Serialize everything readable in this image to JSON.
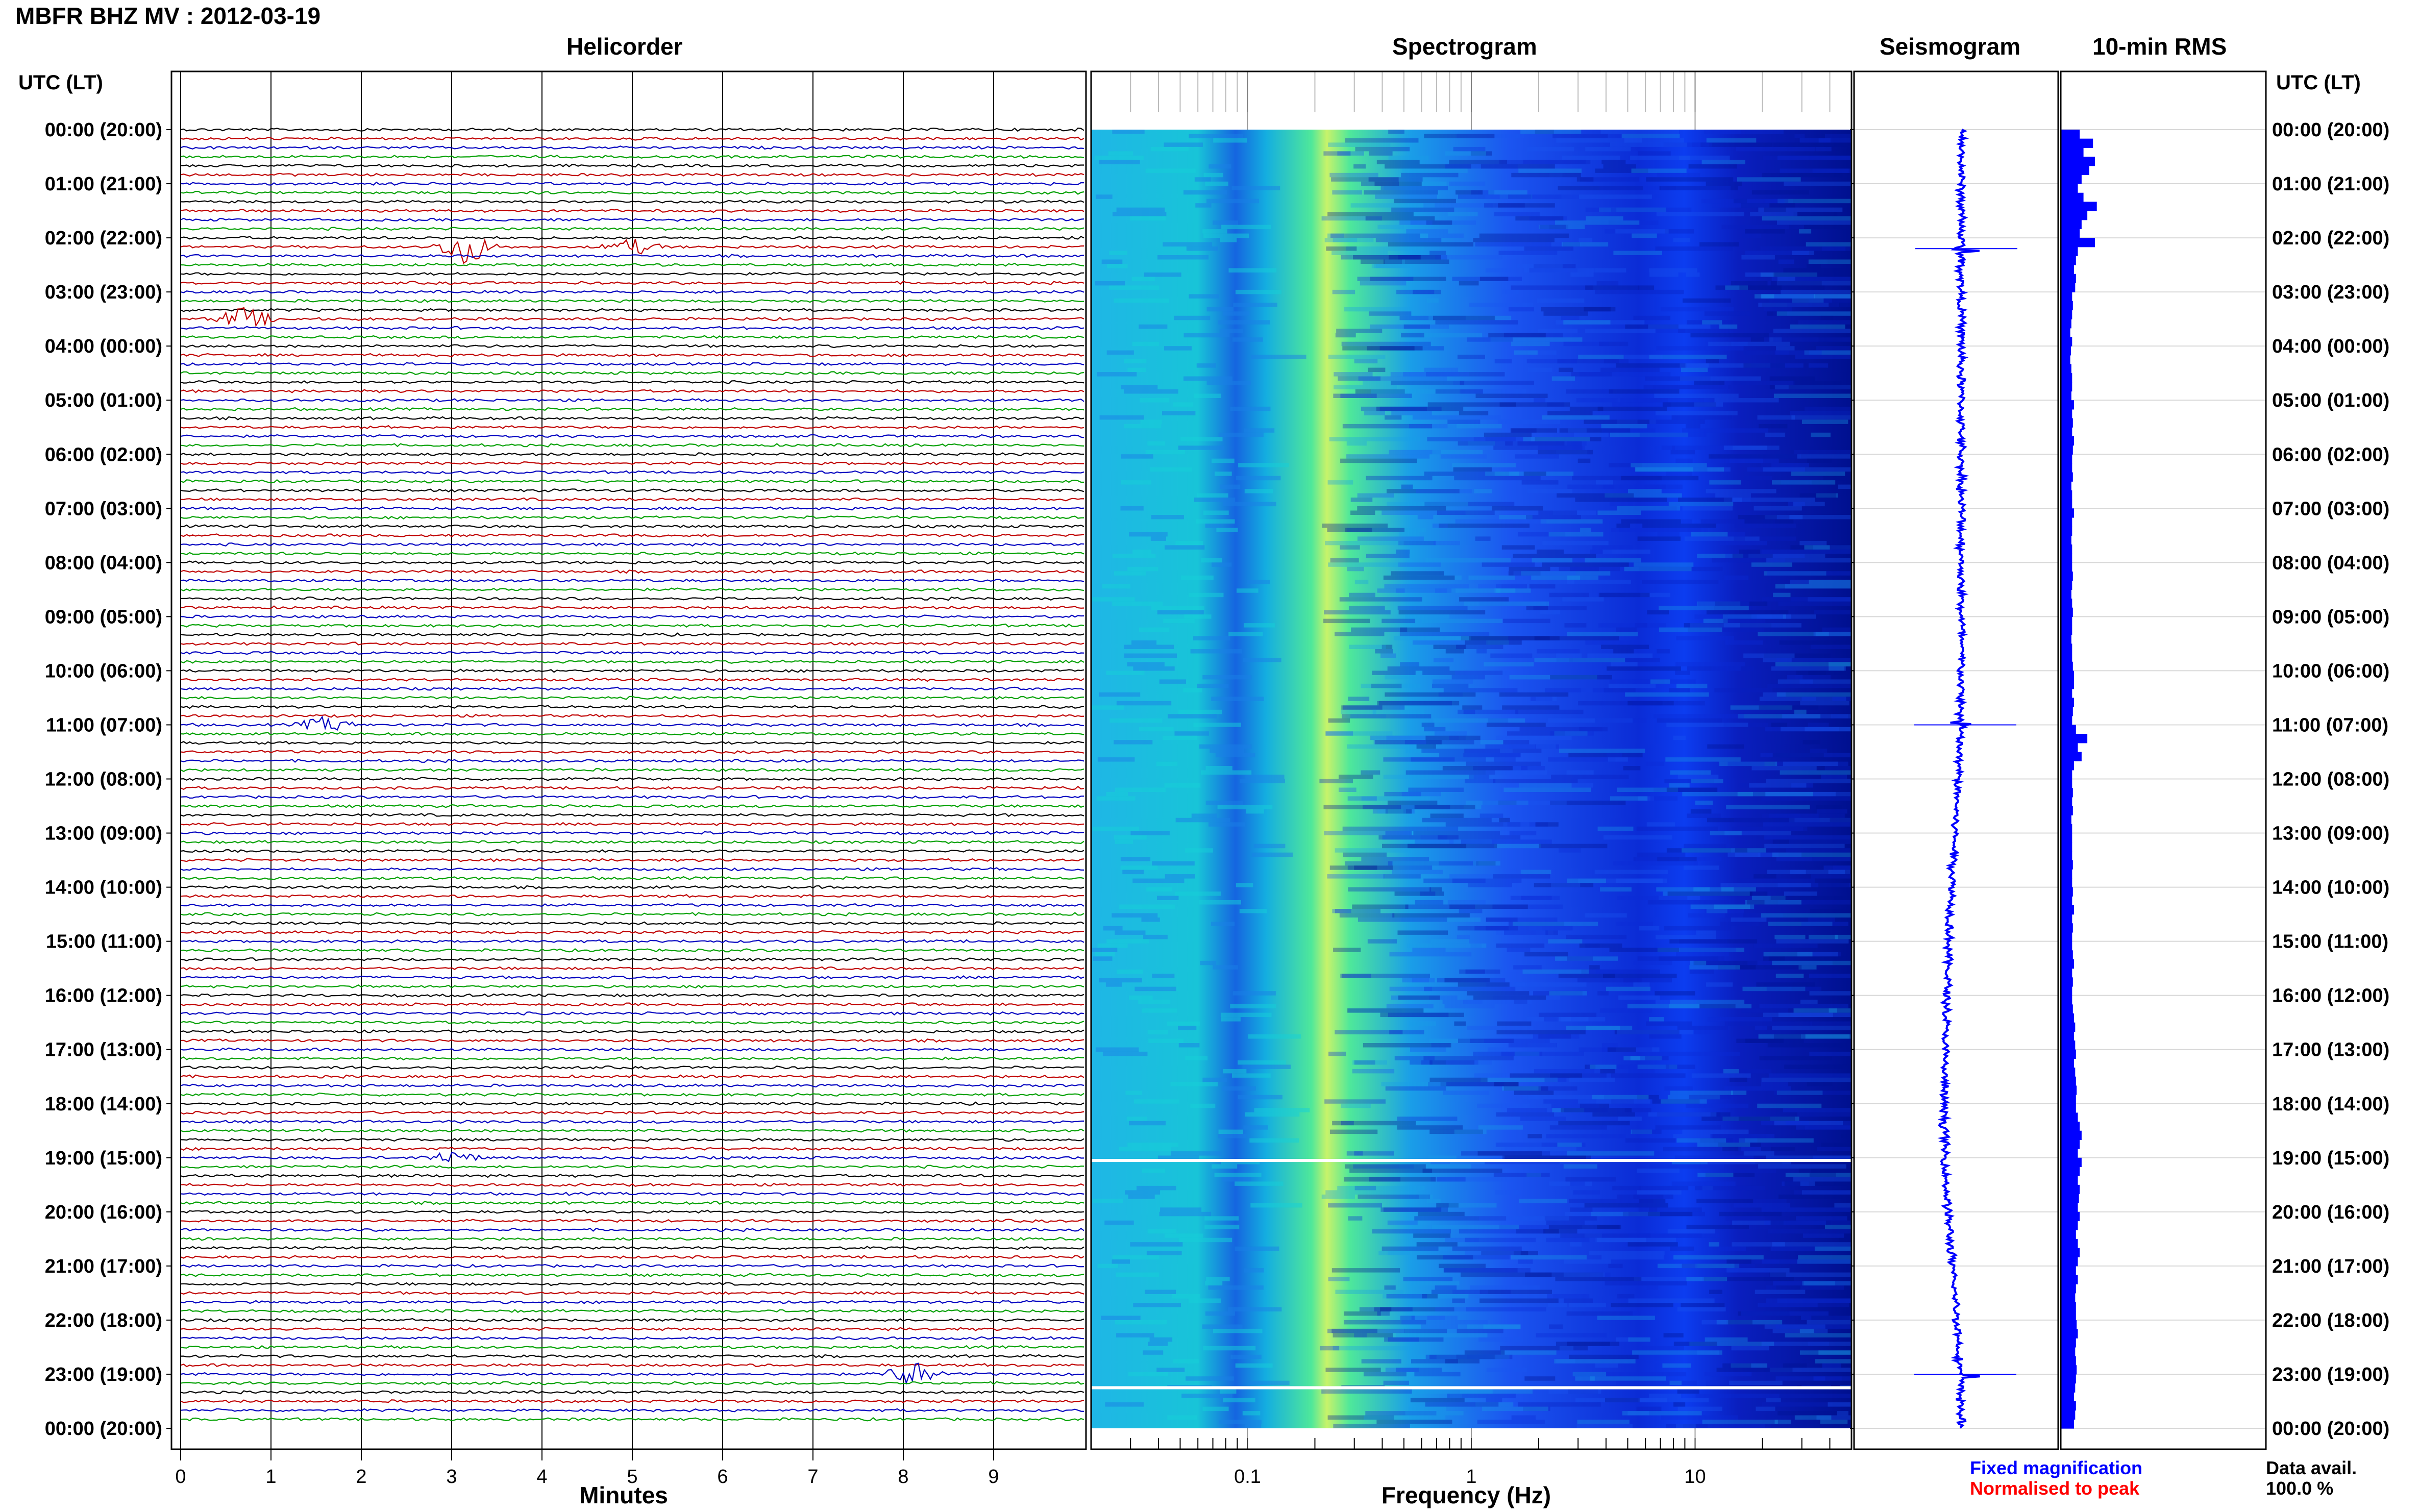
{
  "header": {
    "title": "MBFR BHZ MV : 2012-03-19",
    "utc_label_left": "UTC (LT)",
    "utc_label_right": "UTC (LT)"
  },
  "panels": {
    "helicorder": "Helicorder",
    "spectrogram": "Spectrogram",
    "seismogram": "Seismogram",
    "rms": "10-min RMS"
  },
  "legend": {
    "fixed": "Fixed magnification",
    "normalised": "Normalised to peak",
    "avail_label": "Data avail.",
    "avail_value": "100.0 %"
  },
  "colors": {
    "trace_cycle": [
      "#000000",
      "#c00000",
      "#0000c0",
      "#00a000"
    ],
    "rms": "#0000ff",
    "seismogram": "#0000ff",
    "fixed_text": "#0000ff",
    "normalised_text": "#ff0000"
  },
  "chart_data": [
    {
      "type": "line",
      "name": "helicorder",
      "title": "Helicorder",
      "xlabel": "Minutes",
      "xlim": [
        0,
        10
      ],
      "x_ticks": [
        "0",
        "1",
        "2",
        "3",
        "4",
        "5",
        "6",
        "7",
        "8",
        "9"
      ],
      "y_ticks": [
        "00:00 (20:00)",
        "01:00 (21:00)",
        "02:00 (22:00)",
        "03:00 (23:00)",
        "04:00 (00:00)",
        "05:00 (01:00)",
        "06:00 (02:00)",
        "07:00 (03:00)",
        "08:00 (04:00)",
        "09:00 (05:00)",
        "10:00 (06:00)",
        "11:00 (07:00)",
        "12:00 (08:00)",
        "13:00 (09:00)",
        "14:00 (10:00)",
        "15:00 (11:00)",
        "16:00 (12:00)",
        "17:00 (13:00)",
        "18:00 (14:00)",
        "19:00 (15:00)",
        "20:00 (16:00)",
        "21:00 (17:00)",
        "22:00 (18:00)",
        "23:00 (19:00)",
        "00:00 (20:00)"
      ],
      "lines_per_hour": 6,
      "line_minutes": 10,
      "events": [
        {
          "hour": 2.17,
          "minute": 3.15,
          "strength": 3.5
        },
        {
          "hour": 3.55,
          "minute": 0.7,
          "strength": 2.2
        },
        {
          "hour": 23.0,
          "minute": 8.1,
          "strength": 2.4
        },
        {
          "hour": 2.33,
          "minute": 5.0,
          "strength": 1.5
        },
        {
          "hour": 19.0,
          "minute": 3.0,
          "strength": 1.2
        },
        {
          "hour": 11.0,
          "minute": 1.6,
          "strength": 1.4
        }
      ]
    },
    {
      "type": "heatmap",
      "name": "spectrogram",
      "title": "Spectrogram",
      "xlabel": "Frequency (Hz)",
      "x_scale": "log",
      "xlim": [
        0.02,
        50
      ],
      "x_ticks": [
        "0.1",
        "1",
        "10"
      ],
      "colormap": [
        "#00008b",
        "#0000ff",
        "#1e90ff",
        "#00e5ee",
        "#7fff7f",
        "#ffff66"
      ],
      "peak_frequency_hz": 0.28,
      "gaps_utc_hour": [
        19.05,
        23.25
      ]
    },
    {
      "type": "line",
      "name": "seismogram",
      "title": "Seismogram",
      "drift_by_hour": [
        0,
        0,
        0,
        0,
        0,
        0,
        0,
        0,
        0,
        0,
        0,
        -0.05,
        -0.15,
        -0.3,
        -0.45,
        -0.6,
        -0.7,
        -0.8,
        -0.85,
        -0.8,
        -0.65,
        -0.45,
        -0.2,
        -0.05,
        0
      ],
      "spike_hours": [
        2.2,
        23.0,
        11.0
      ]
    },
    {
      "type": "bar",
      "name": "rms",
      "title": "10-min RMS",
      "orientation": "horizontal",
      "values": [
        0.5,
        0.85,
        0.6,
        0.9,
        0.75,
        0.55,
        0.45,
        0.6,
        0.95,
        0.7,
        0.55,
        0.5,
        0.9,
        0.45,
        0.4,
        0.35,
        0.4,
        0.38,
        0.3,
        0.32,
        0.3,
        0.28,
        0.25,
        0.3,
        0.27,
        0.25,
        0.28,
        0.3,
        0.3,
        0.28,
        0.35,
        0.3,
        0.32,
        0.3,
        0.35,
        0.32,
        0.3,
        0.3,
        0.32,
        0.28,
        0.3,
        0.3,
        0.35,
        0.3,
        0.3,
        0.28,
        0.3,
        0.3,
        0.3,
        0.32,
        0.3,
        0.28,
        0.3,
        0.32,
        0.3,
        0.3,
        0.28,
        0.3,
        0.3,
        0.32,
        0.35,
        0.35,
        0.3,
        0.35,
        0.32,
        0.3,
        0.4,
        0.7,
        0.45,
        0.55,
        0.35,
        0.3,
        0.3,
        0.32,
        0.3,
        0.32,
        0.28,
        0.3,
        0.3,
        0.3,
        0.3,
        0.32,
        0.3,
        0.3,
        0.32,
        0.3,
        0.35,
        0.3,
        0.32,
        0.3,
        0.3,
        0.32,
        0.35,
        0.3,
        0.32,
        0.3,
        0.3,
        0.32,
        0.35,
        0.38,
        0.35,
        0.38,
        0.4,
        0.35,
        0.38,
        0.4,
        0.42,
        0.4,
        0.4,
        0.45,
        0.5,
        0.55,
        0.5,
        0.45,
        0.55,
        0.5,
        0.45,
        0.5,
        0.48,
        0.45,
        0.5,
        0.45,
        0.4,
        0.45,
        0.5,
        0.45,
        0.4,
        0.45,
        0.4,
        0.38,
        0.4,
        0.4,
        0.42,
        0.45,
        0.4,
        0.38,
        0.4,
        0.42,
        0.4,
        0.38,
        0.35,
        0.4,
        0.38,
        0.35
      ]
    }
  ]
}
